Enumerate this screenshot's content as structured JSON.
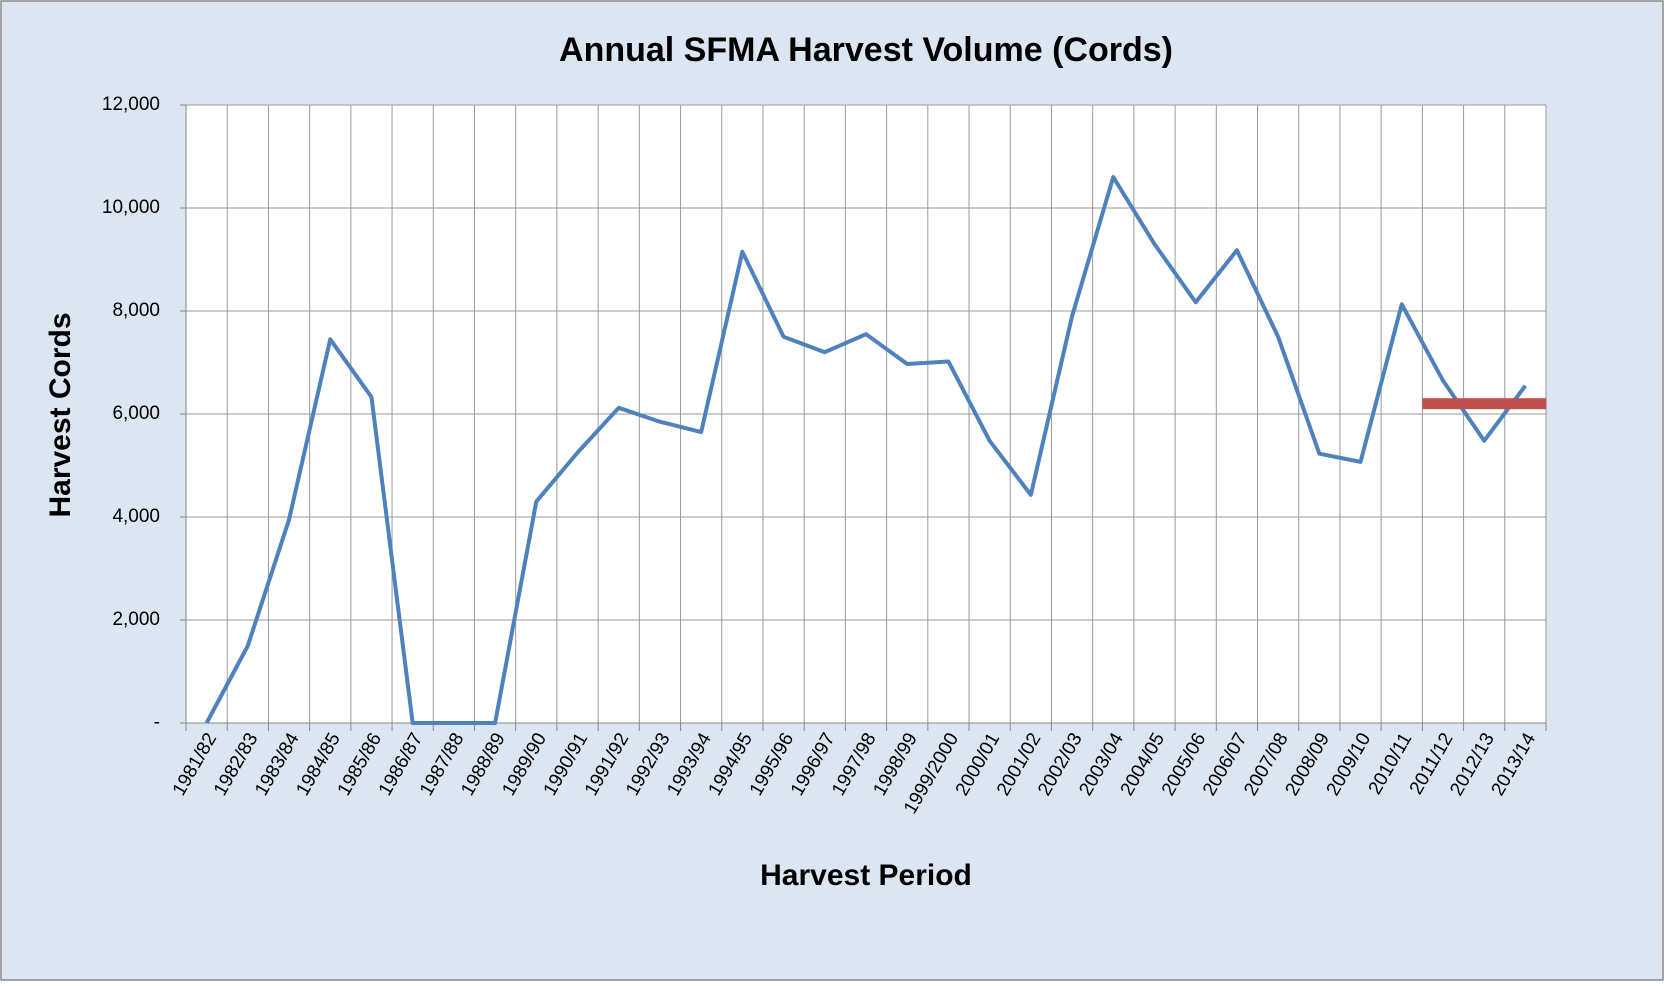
{
  "chart_data": {
    "type": "line",
    "title": "Annual SFMA Harvest Volume (Cords)",
    "x_label": "Harvest Period",
    "y_label": "Harvest Cords",
    "categories": [
      "1981/82",
      "1982/83",
      "1983/84",
      "1984/85",
      "1985/86",
      "1986/87",
      "1987/88",
      "1988/89",
      "1989/90",
      "1990/91",
      "1991/92",
      "1992/93",
      "1993/94",
      "1994/95",
      "1995/96",
      "1996/97",
      "1997/98",
      "1998/99",
      "1999/2000",
      "2000/01",
      "2001/02",
      "2002/03",
      "2003/04",
      "2004/05",
      "2005/06",
      "2006/07",
      "2007/08",
      "2008/09",
      "2009/10",
      "2010/11",
      "2011/12",
      "2012/13",
      "2013/14"
    ],
    "series": [
      {
        "color": "#4f81bd",
        "kind": "line",
        "values": [
          0,
          1500,
          3950,
          7450,
          6330,
          0,
          0,
          0,
          4300,
          5250,
          6120,
          5850,
          5650,
          9150,
          7500,
          7200,
          7550,
          6970,
          7020,
          5480,
          4430,
          7900,
          10600,
          9300,
          8170,
          9180,
          7500,
          5230,
          5070,
          8130,
          6650,
          5480,
          6550
        ]
      },
      {
        "color": "#c0504d",
        "kind": "level",
        "values": [
          null,
          null,
          null,
          null,
          null,
          null,
          null,
          null,
          null,
          null,
          null,
          null,
          null,
          null,
          null,
          null,
          null,
          null,
          null,
          null,
          null,
          null,
          null,
          null,
          null,
          null,
          null,
          null,
          null,
          null,
          6200,
          6200,
          6200
        ]
      }
    ],
    "ylim": [
      0,
      12000
    ],
    "yticks": [
      {
        "value": 0,
        "label": "-"
      },
      {
        "value": 2000,
        "label": "2,000"
      },
      {
        "value": 4000,
        "label": "4,000"
      },
      {
        "value": 6000,
        "label": "6,000"
      },
      {
        "value": 8000,
        "label": "8,000"
      },
      {
        "value": 10000,
        "label": "10,000"
      },
      {
        "value": 12000,
        "label": "12,000"
      }
    ],
    "grid": true
  }
}
